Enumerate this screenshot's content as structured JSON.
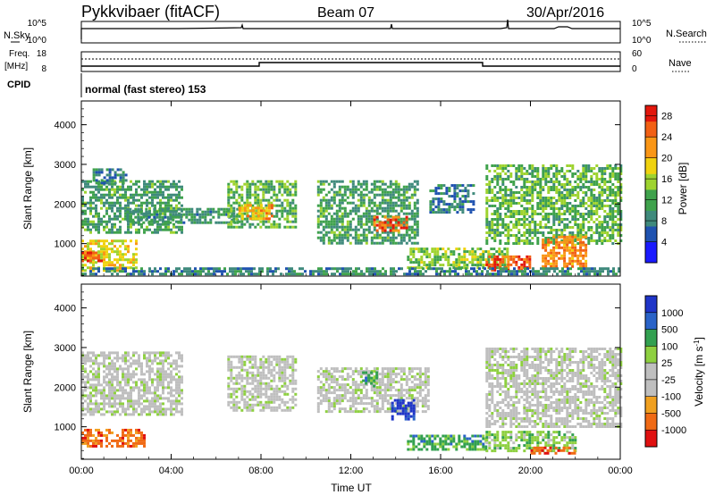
{
  "header": {
    "station": "Pykkvibaer (fitACF)",
    "beam": "Beam 07",
    "date": "30/Apr/2016"
  },
  "small_panels": {
    "nsky_label": "N.Sky",
    "nsky_ticks": [
      "10^5",
      "10^0"
    ],
    "nsearch_label": "N.Search",
    "nsearch_ticks": [
      "10^5",
      "10^0"
    ],
    "freq_label": "Freq.",
    "freq_unit": "[MHz]",
    "freq_ticks": [
      "18",
      "8"
    ],
    "nave_label": "Nave",
    "nave_ticks": [
      "60",
      "0"
    ],
    "cpid_label": "CPID",
    "cpid_text": "normal (fast stereo) 153"
  },
  "colors": {
    "power_scale": [
      "#1a1aff",
      "#1f52b0",
      "#3f8a7c",
      "#3fa24c",
      "#9ed32f",
      "#f0d20f",
      "#fa9616",
      "#f26014",
      "#e3170c"
    ],
    "velocity_scale": [
      "#1f35c8",
      "#2a63c8",
      "#32a050",
      "#8ed040",
      "#bfbfbf",
      "#bfbfbf",
      "#f0a020",
      "#f06a15",
      "#e01010"
    ]
  },
  "chart_data": [
    {
      "type": "heatmap",
      "name": "power",
      "ylabel": "Slant Range [km]",
      "xlabel": "Time UT",
      "x_ticks": [
        "00:00",
        "04:00",
        "08:00",
        "12:00",
        "16:00",
        "20:00",
        "00:00"
      ],
      "x_range_hours": [
        0,
        24
      ],
      "y_ticks": [
        1000,
        2000,
        3000,
        4000
      ],
      "ylim": [
        180,
        4600
      ],
      "colorbar_label": "Power [dB]",
      "colorbar_ticks": [
        "4",
        "8",
        "12",
        "16",
        "20",
        "24",
        "28"
      ],
      "colorbar_range": [
        0,
        30
      ],
      "regions": [
        {
          "t0": 0.0,
          "t1": 2.5,
          "r0": 300,
          "r1": 1100,
          "level": 18
        },
        {
          "t0": 0.0,
          "t1": 1.0,
          "r0": 550,
          "r1": 800,
          "level": 27
        },
        {
          "t0": 0.0,
          "t1": 4.5,
          "r0": 1300,
          "r1": 2600,
          "level": 10
        },
        {
          "t0": 0.5,
          "t1": 2.0,
          "r0": 2500,
          "r1": 2900,
          "level": 8
        },
        {
          "t0": 2.0,
          "t1": 7.0,
          "r0": 1500,
          "r1": 1900,
          "level": 9
        },
        {
          "t0": 6.5,
          "t1": 9.5,
          "r0": 1400,
          "r1": 2600,
          "level": 12
        },
        {
          "t0": 7.0,
          "t1": 8.5,
          "r0": 1600,
          "r1": 2000,
          "level": 22
        },
        {
          "t0": 10.5,
          "t1": 15.0,
          "r0": 1000,
          "r1": 2600,
          "level": 10
        },
        {
          "t0": 13.0,
          "t1": 14.5,
          "r0": 1300,
          "r1": 1700,
          "level": 26
        },
        {
          "t0": 15.5,
          "t1": 17.5,
          "r0": 1800,
          "r1": 2500,
          "level": 7
        },
        {
          "t0": 14.5,
          "t1": 19.0,
          "r0": 400,
          "r1": 900,
          "level": 14
        },
        {
          "t0": 18.0,
          "t1": 20.0,
          "r0": 300,
          "r1": 700,
          "level": 27
        },
        {
          "t0": 18.0,
          "t1": 24.0,
          "r0": 1000,
          "r1": 3000,
          "level": 12
        },
        {
          "t0": 20.5,
          "t1": 22.5,
          "r0": 400,
          "r1": 1200,
          "level": 24
        },
        {
          "t0": 0.0,
          "t1": 24.0,
          "r0": 200,
          "r1": 400,
          "level": 8
        }
      ]
    },
    {
      "type": "heatmap",
      "name": "velocity",
      "ylabel": "Slant Range [km]",
      "xlabel": "Time UT",
      "x_ticks": [
        "00:00",
        "04:00",
        "08:00",
        "12:00",
        "16:00",
        "20:00",
        "00:00"
      ],
      "x_range_hours": [
        0,
        24
      ],
      "y_ticks": [
        1000,
        2000,
        3000,
        4000
      ],
      "ylim": [
        180,
        4600
      ],
      "colorbar_label": "Velocity [m s^-1]",
      "colorbar_ticks": [
        "1000",
        "500",
        "100",
        "25",
        "-25",
        "-100",
        "-500",
        "-1000"
      ],
      "regions": [
        {
          "t0": 0.0,
          "t1": 2.8,
          "r0": 500,
          "r1": 950,
          "level": 7
        },
        {
          "t0": 0.0,
          "t1": 4.5,
          "r0": 1300,
          "r1": 2900,
          "level": 4
        },
        {
          "t0": 6.5,
          "t1": 9.5,
          "r0": 1400,
          "r1": 2800,
          "level": 4
        },
        {
          "t0": 10.5,
          "t1": 15.5,
          "r0": 1400,
          "r1": 2500,
          "level": 4
        },
        {
          "t0": 13.8,
          "t1": 14.8,
          "r0": 1200,
          "r1": 1700,
          "level": 0
        },
        {
          "t0": 12.5,
          "t1": 13.2,
          "r0": 2000,
          "r1": 2400,
          "level": 2
        },
        {
          "t0": 14.5,
          "t1": 18.0,
          "r0": 450,
          "r1": 800,
          "level": 2
        },
        {
          "t0": 18.0,
          "t1": 22.0,
          "r0": 400,
          "r1": 900,
          "level": 3
        },
        {
          "t0": 18.0,
          "t1": 24.0,
          "r0": 1000,
          "r1": 3000,
          "level": 4
        },
        {
          "t0": 20.0,
          "t1": 22.0,
          "r0": 300,
          "r1": 500,
          "level": 7
        }
      ]
    }
  ]
}
